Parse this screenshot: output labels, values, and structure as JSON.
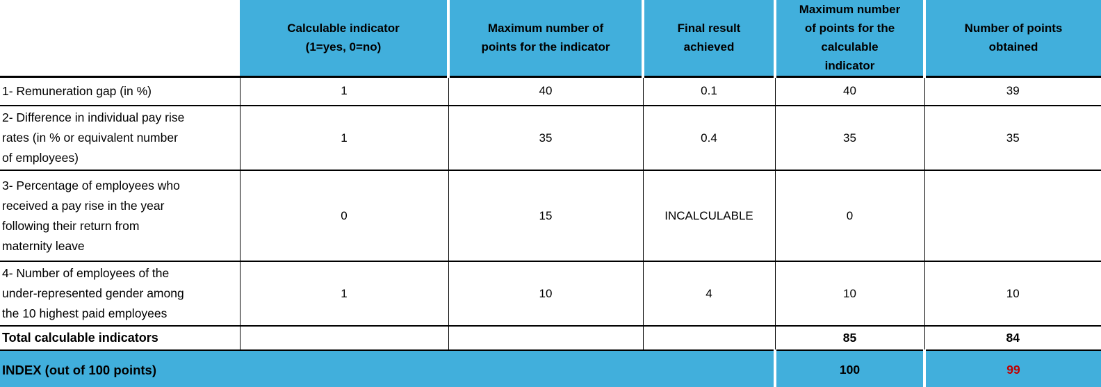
{
  "colors": {
    "header_bg": "#41AFDC",
    "index_points_color": "#C00000",
    "border": "#000000"
  },
  "table": {
    "headers": [
      "Calculable indicator\n(1=yes, 0=no)",
      "Maximum number of\npoints for the indicator",
      "Final result\nachieved",
      "Maximum number\nof points for the\ncalculable\nindicator",
      "Number of points\nobtained"
    ],
    "rows": [
      {
        "label": "1- Remuneration gap (in %)",
        "values": [
          "1",
          "40",
          "0.1",
          "40",
          "39"
        ]
      },
      {
        "label": "2- Difference in individual pay rise\nrates (in % or equivalent number\nof employees)",
        "values": [
          "1",
          "35",
          "0.4",
          "35",
          "35"
        ]
      },
      {
        "label": "3- Percentage of employees who\nreceived a pay rise in the year\nfollowing their return from\nmaternity leave",
        "values": [
          "0",
          "15",
          "INCALCULABLE",
          "0",
          ""
        ]
      },
      {
        "label": "4- Number of employees of the\nunder-represented gender among\nthe 10 highest paid employees",
        "values": [
          "1",
          "10",
          "4",
          "10",
          "10"
        ]
      }
    ],
    "total_row": {
      "label": "Total calculable indicators",
      "values": [
        "",
        "",
        "",
        "85",
        "84"
      ]
    },
    "index_row": {
      "label": "INDEX (out of 100 points)",
      "max_points": "100",
      "points_obtained": "99"
    }
  }
}
